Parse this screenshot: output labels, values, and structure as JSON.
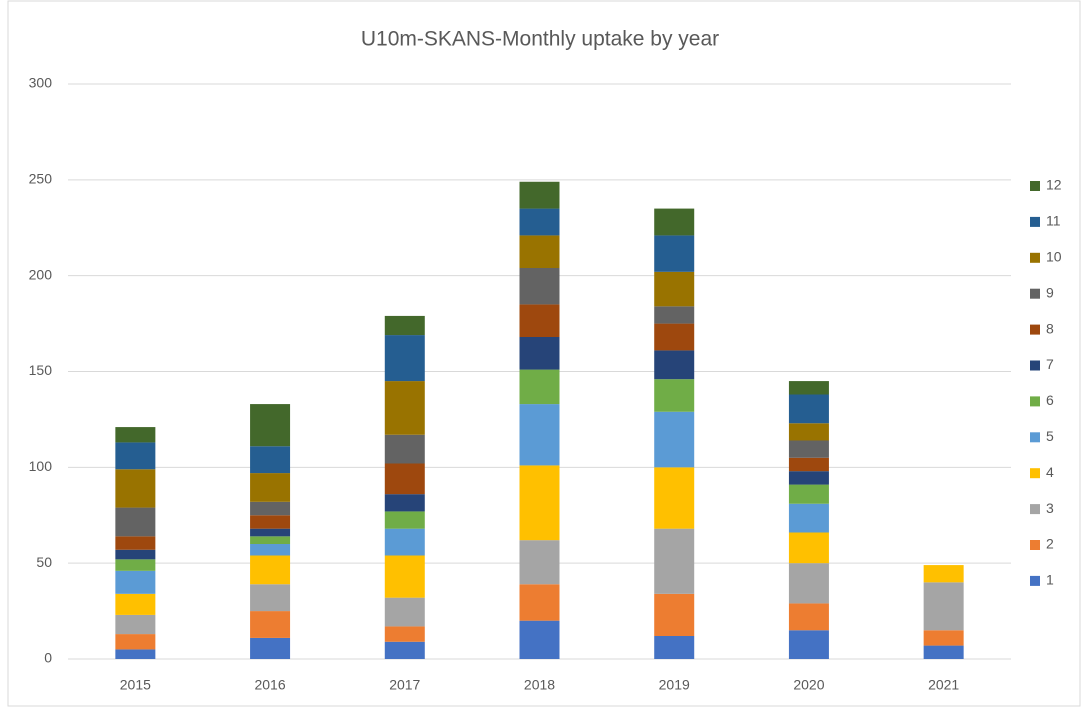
{
  "chart_data": {
    "type": "bar",
    "stacked": true,
    "title": "U10m-SKANS-Monthly uptake by year",
    "categories": [
      "2015",
      "2016",
      "2017",
      "2018",
      "2019",
      "2020",
      "2021"
    ],
    "series": [
      {
        "name": "1",
        "color": "#4472c4",
        "values": [
          5,
          11,
          9,
          20,
          12,
          15,
          7
        ]
      },
      {
        "name": "2",
        "color": "#ed7d31",
        "values": [
          8,
          14,
          8,
          19,
          22,
          14,
          8
        ]
      },
      {
        "name": "3",
        "color": "#a5a5a5",
        "values": [
          10,
          14,
          15,
          23,
          34,
          21,
          25
        ]
      },
      {
        "name": "4",
        "color": "#ffc000",
        "values": [
          11,
          15,
          22,
          39,
          32,
          16,
          9
        ]
      },
      {
        "name": "5",
        "color": "#5b9bd5",
        "values": [
          12,
          6,
          14,
          32,
          29,
          15,
          0
        ]
      },
      {
        "name": "6",
        "color": "#70ad47",
        "values": [
          6,
          4,
          9,
          18,
          17,
          10,
          0
        ]
      },
      {
        "name": "7",
        "color": "#264478",
        "values": [
          5,
          4,
          9,
          17,
          15,
          7,
          0
        ]
      },
      {
        "name": "8",
        "color": "#9e480e",
        "values": [
          7,
          7,
          16,
          17,
          14,
          7,
          0
        ]
      },
      {
        "name": "9",
        "color": "#636363",
        "values": [
          15,
          7,
          15,
          19,
          9,
          9,
          0
        ]
      },
      {
        "name": "10",
        "color": "#997300",
        "values": [
          20,
          15,
          28,
          17,
          18,
          9,
          0
        ]
      },
      {
        "name": "11",
        "color": "#255e91",
        "values": [
          14,
          14,
          24,
          14,
          19,
          15,
          0
        ]
      },
      {
        "name": "12",
        "color": "#43682b",
        "values": [
          8,
          22,
          10,
          14,
          14,
          7,
          0
        ]
      }
    ],
    "ylim": [
      0,
      300
    ],
    "yticks": [
      0,
      50,
      100,
      150,
      200,
      250,
      300
    ],
    "grid": true,
    "legend": "right"
  }
}
